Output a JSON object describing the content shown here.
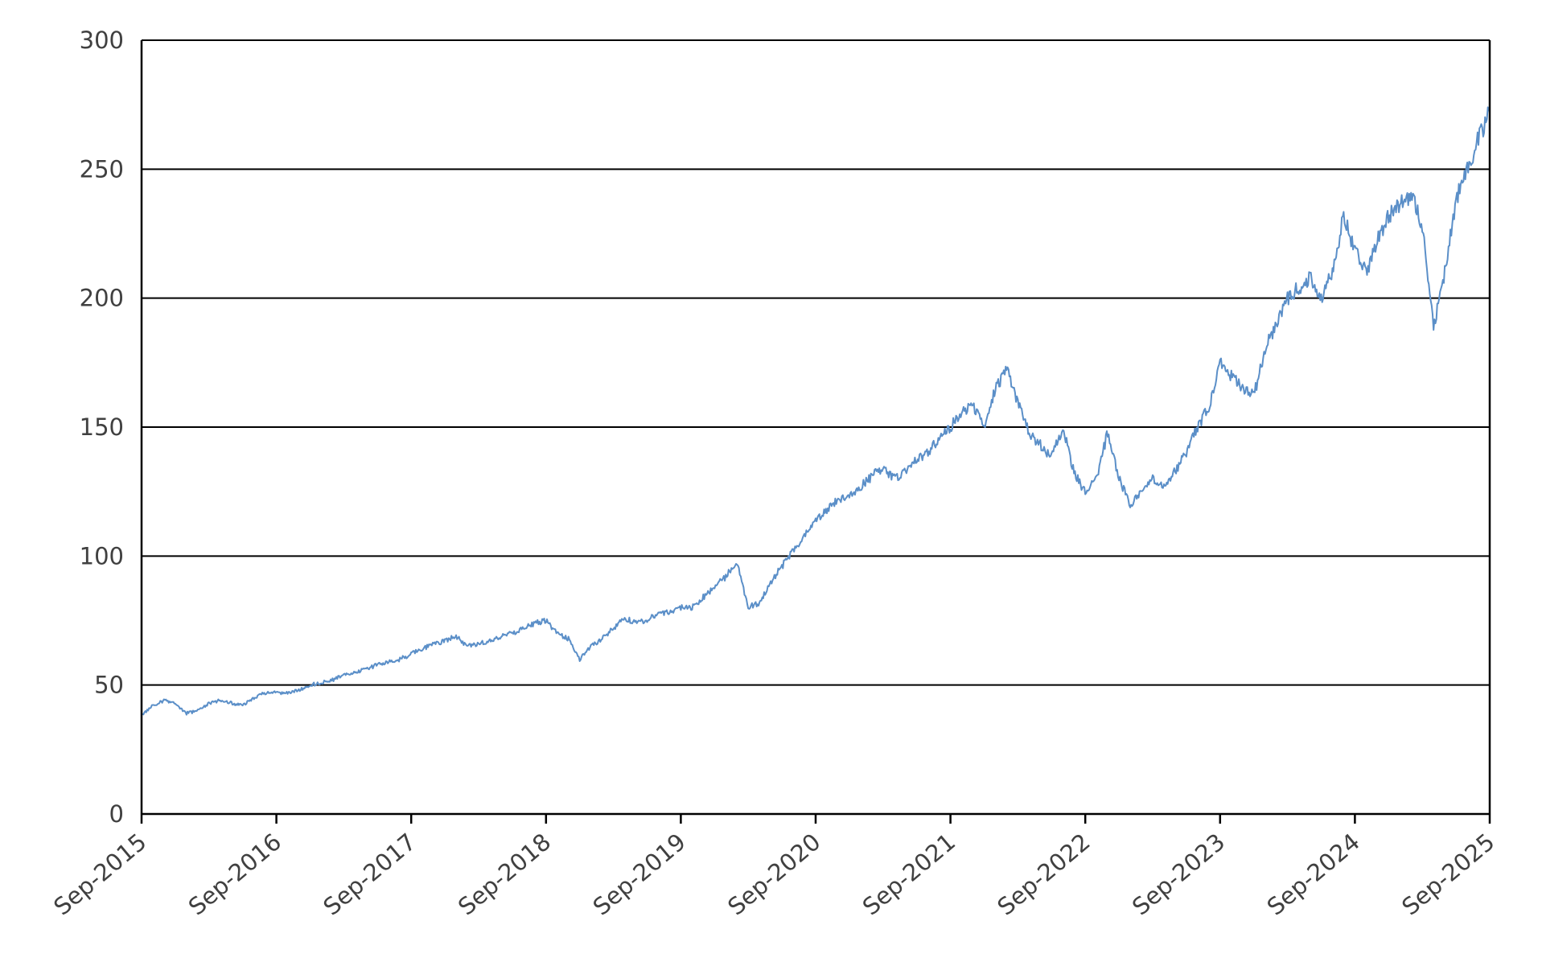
{
  "chart_data": {
    "type": "line",
    "title": "",
    "xlabel": "",
    "ylabel": "",
    "ylim": [
      0,
      300
    ],
    "yticks": [
      0,
      50,
      100,
      150,
      200,
      250,
      300
    ],
    "xlim": [
      "Sep-2015",
      "Sep-2025"
    ],
    "xticks": [
      "Sep-2015",
      "Sep-2016",
      "Sep-2017",
      "Sep-2018",
      "Sep-2019",
      "Sep-2020",
      "Sep-2021",
      "Sep-2022",
      "Sep-2023",
      "Sep-2024",
      "Sep-2025"
    ],
    "grid": "horizontal",
    "legend": "none",
    "colors": {
      "line": "#5b8fc8",
      "grid": "#000000",
      "axis": "#000000",
      "tick_label": "#404040"
    },
    "series": [
      {
        "x": [
          "2015-09",
          "2015-10",
          "2015-11",
          "2015-12",
          "2016-01",
          "2016-02",
          "2016-03",
          "2016-04",
          "2016-05",
          "2016-06",
          "2016-07",
          "2016-08",
          "2016-09",
          "2016-10",
          "2016-11",
          "2016-12",
          "2017-01",
          "2017-02",
          "2017-03",
          "2017-04",
          "2017-05",
          "2017-06",
          "2017-07",
          "2017-08",
          "2017-09",
          "2017-10",
          "2017-11",
          "2017-12",
          "2018-01",
          "2018-02",
          "2018-03",
          "2018-04",
          "2018-05",
          "2018-06",
          "2018-07",
          "2018-08",
          "2018-09",
          "2018-10",
          "2018-11",
          "2018-12",
          "2019-01",
          "2019-02",
          "2019-03",
          "2019-04",
          "2019-05",
          "2019-06",
          "2019-07",
          "2019-08",
          "2019-09",
          "2019-10",
          "2019-11",
          "2019-12",
          "2020-01",
          "2020-02",
          "2020-03",
          "2020-04",
          "2020-05",
          "2020-06",
          "2020-07",
          "2020-08",
          "2020-09",
          "2020-10",
          "2020-11",
          "2020-12",
          "2021-01",
          "2021-02",
          "2021-03",
          "2021-04",
          "2021-05",
          "2021-06",
          "2021-07",
          "2021-08",
          "2021-09",
          "2021-10",
          "2021-11",
          "2021-12",
          "2022-01",
          "2022-02",
          "2022-03",
          "2022-04",
          "2022-05",
          "2022-06",
          "2022-07",
          "2022-08",
          "2022-09",
          "2022-10",
          "2022-11",
          "2022-12",
          "2023-01",
          "2023-02",
          "2023-03",
          "2023-04",
          "2023-05",
          "2023-06",
          "2023-07",
          "2023-08",
          "2023-09",
          "2023-10",
          "2023-11",
          "2023-12",
          "2024-01",
          "2024-02",
          "2024-03",
          "2024-04",
          "2024-05",
          "2024-06",
          "2024-07",
          "2024-08",
          "2024-09",
          "2024-10",
          "2024-11",
          "2024-12",
          "2025-01",
          "2025-02",
          "2025-03",
          "2025-04",
          "2025-05",
          "2025-06",
          "2025-07",
          "2025-08",
          "2025-09"
        ],
        "values": [
          38,
          42,
          44,
          43,
          39,
          40,
          43,
          44,
          43,
          42,
          45,
          47,
          47,
          47,
          48,
          50,
          51,
          52,
          54,
          55,
          56,
          58,
          59,
          60,
          62,
          64,
          66,
          67,
          69,
          65,
          66,
          67,
          69,
          70,
          72,
          74,
          75,
          70,
          68,
          60,
          65,
          68,
          72,
          76,
          74,
          75,
          78,
          78,
          80,
          80,
          84,
          88,
          92,
          98,
          80,
          82,
          90,
          96,
          102,
          108,
          114,
          118,
          122,
          124,
          127,
          131,
          134,
          130,
          133,
          138,
          140,
          146,
          150,
          156,
          158,
          150,
          165,
          172,
          160,
          148,
          143,
          138,
          150,
          132,
          125,
          130,
          148,
          130,
          120,
          125,
          130,
          127,
          133,
          140,
          150,
          158,
          175,
          170,
          165,
          162,
          180,
          190,
          200,
          204,
          208,
          200,
          210,
          232,
          218,
          210,
          222,
          232,
          236,
          240,
          228,
          188,
          210,
          238,
          250,
          262,
          272
        ]
      }
    ]
  }
}
